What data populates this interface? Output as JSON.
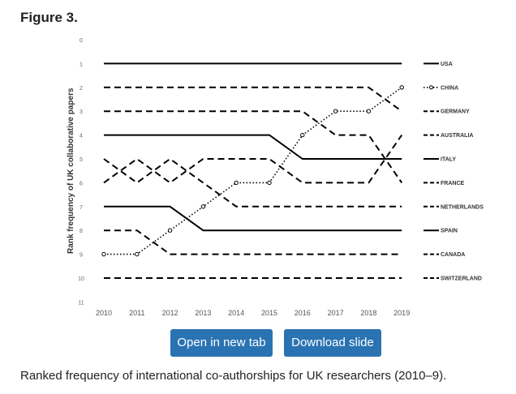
{
  "figure_label": "Figure 3.",
  "caption": "Ranked frequency of international co-authorships for UK researchers (2010–9).",
  "actions": {
    "open_label": "Open in new tab",
    "download_label": "Download slide"
  },
  "colors": {
    "button_bg": "#2a73b3",
    "button_text": "#ffffff",
    "line": "#000000",
    "axis_text": "#666666"
  },
  "chart_data": {
    "type": "line",
    "title": "",
    "xlabel": "",
    "ylabel": "Rank frequency of UK collaborative papers",
    "x": [
      "2010",
      "2011",
      "2012",
      "2013",
      "2014",
      "2015",
      "2016",
      "2017",
      "2018",
      "2019"
    ],
    "y_ticks": [
      "0",
      "1",
      "2",
      "3",
      "4",
      "5",
      "6",
      "7",
      "8",
      "9",
      "10",
      "11"
    ],
    "ylim": [
      0,
      11
    ],
    "y_inverted": true,
    "legend_position": "right",
    "series": [
      {
        "name": "USA",
        "style": "solid",
        "values": [
          1,
          1,
          1,
          1,
          1,
          1,
          1,
          1,
          1,
          1
        ]
      },
      {
        "name": "CHINA",
        "style": "dotted-markers",
        "values": [
          9,
          9,
          8,
          7,
          6,
          6,
          4,
          3,
          3,
          2
        ]
      },
      {
        "name": "GERMANY",
        "style": "dashed",
        "values": [
          2,
          2,
          2,
          2,
          2,
          2,
          2,
          2,
          2,
          3
        ]
      },
      {
        "name": "AUSTRALIA",
        "style": "dashed",
        "values": [
          3,
          3,
          3,
          3,
          3,
          3,
          3,
          4,
          4,
          6
        ]
      },
      {
        "name": "ITALY",
        "style": "solid",
        "values": [
          4,
          4,
          4,
          4,
          4,
          4,
          5,
          5,
          5,
          5
        ]
      },
      {
        "name": "FRANCE",
        "style": "dashed",
        "values": [
          6,
          5,
          6,
          5,
          5,
          5,
          6,
          6,
          6,
          4
        ]
      },
      {
        "name": "NETHERLANDS",
        "style": "dashed",
        "values": [
          5,
          6,
          5,
          6,
          7,
          7,
          7,
          7,
          7,
          7
        ]
      },
      {
        "name": "SPAIN",
        "style": "solid",
        "values": [
          7,
          7,
          7,
          8,
          8,
          8,
          8,
          8,
          8,
          8
        ]
      },
      {
        "name": "CANADA",
        "style": "dashed",
        "values": [
          8,
          8,
          9,
          9,
          9,
          9,
          9,
          9,
          9,
          9
        ]
      },
      {
        "name": "SWITZERLAND",
        "style": "dashed",
        "values": [
          10,
          10,
          10,
          10,
          10,
          10,
          10,
          10,
          10,
          10
        ]
      }
    ]
  }
}
